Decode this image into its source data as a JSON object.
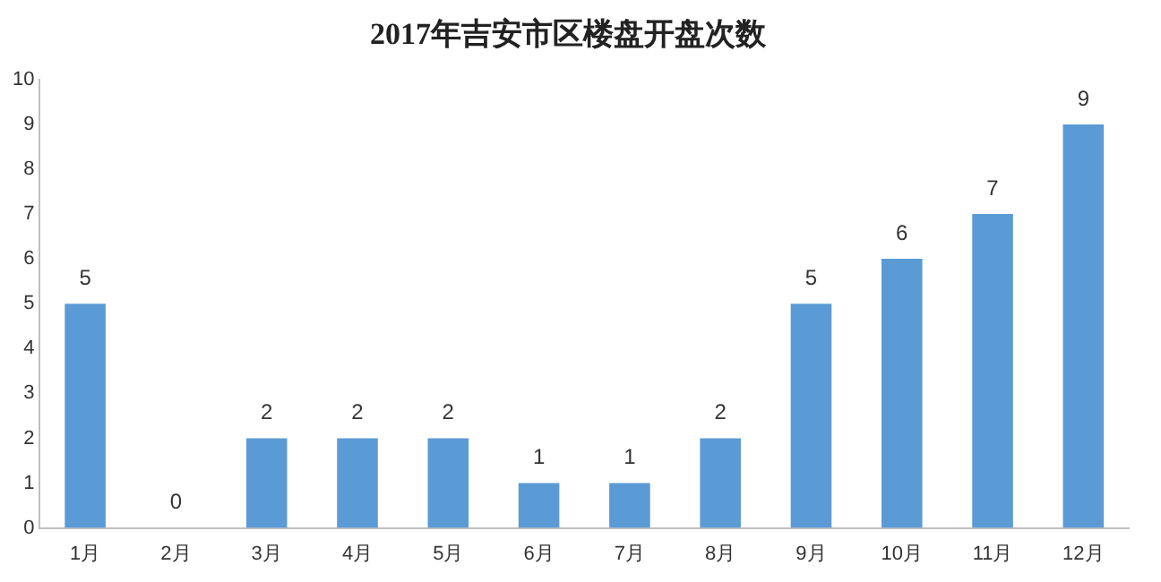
{
  "chart_data": {
    "type": "bar",
    "title": "2017年吉安市区楼盘开盘次数",
    "categories": [
      "1月",
      "2月",
      "3月",
      "4月",
      "5月",
      "6月",
      "7月",
      "8月",
      "9月",
      "10月",
      "11月",
      "12月"
    ],
    "values": [
      5,
      0,
      2,
      2,
      2,
      1,
      1,
      2,
      5,
      6,
      7,
      9
    ],
    "color": "#5b9bd5",
    "ylim": [
      0,
      10
    ],
    "yticks": [
      0,
      1,
      2,
      3,
      4,
      5,
      6,
      7,
      8,
      9,
      10
    ],
    "grid": false,
    "legend": false,
    "data_labels": true
  }
}
